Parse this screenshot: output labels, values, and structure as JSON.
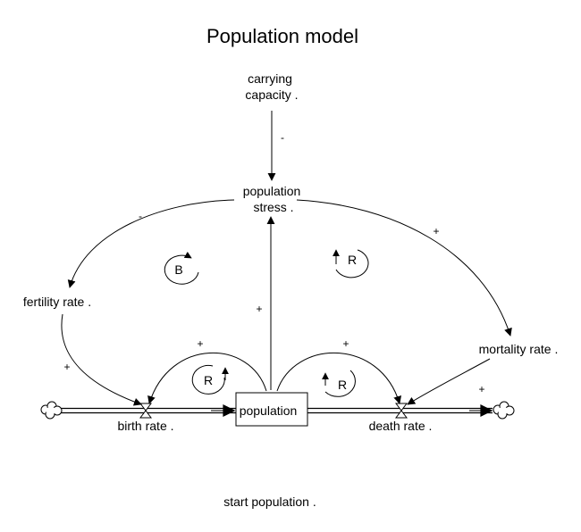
{
  "title": "Population model",
  "variables": {
    "carrying_capacity": [
      "carrying",
      "capacity ."
    ],
    "population_stress": [
      "population",
      "stress ."
    ],
    "fertility_rate": "fertility rate .",
    "mortality_rate": "mortality rate .",
    "birth_rate": "birth rate .",
    "death_rate": "death rate .",
    "population": "population",
    "start_population": "start population ."
  },
  "polarities": {
    "capacity_to_stress": "-",
    "stress_to_fertility": "-",
    "stress_to_mortality": "+",
    "population_to_stress": "+",
    "fertility_to_birth": "+",
    "population_to_birth": "+",
    "population_to_death": "+",
    "mortality_to_death": "+"
  },
  "loops": {
    "balancing_left": "B",
    "reinforcing_upper_right": "R",
    "reinforcing_birth": "R",
    "reinforcing_death": "R"
  }
}
